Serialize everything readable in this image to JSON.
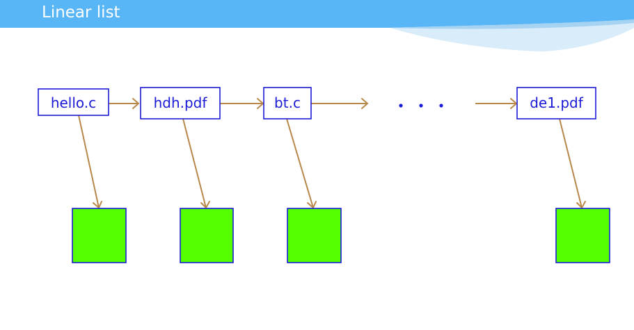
{
  "header": {
    "title": "Linear list"
  },
  "colors": {
    "header_band": "#58b6f6",
    "node_text": "#1a1ad6",
    "block_fill": "#55ff00",
    "arrow": "#b8874a"
  },
  "diagram": {
    "entries": [
      {
        "label": "hello.c"
      },
      {
        "label": "hdh.pdf"
      },
      {
        "label": "bt.c"
      },
      {
        "label": "de1.pdf"
      }
    ],
    "ellipsis": "…"
  }
}
